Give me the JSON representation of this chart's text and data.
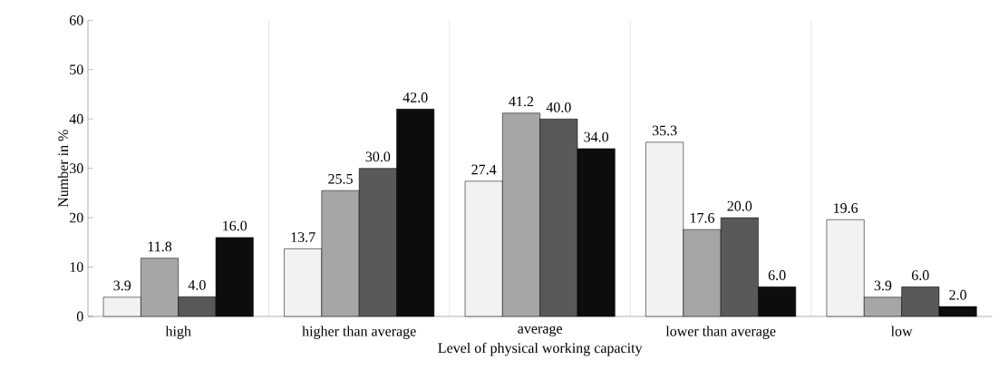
{
  "chart_data": {
    "type": "bar",
    "xlabel": "Level of physical working capacity",
    "ylabel": "Number in %",
    "categories": [
      "high",
      "higher than average",
      "average",
      "lower than average",
      "low"
    ],
    "series": [
      {
        "color": "#f2f2f2",
        "values": [
          3.9,
          13.7,
          27.4,
          35.3,
          19.6
        ],
        "value_labels": [
          "3.9",
          "13.7",
          "27.4",
          "35.3",
          "19.6"
        ]
      },
      {
        "color": "#a6a6a6",
        "values": [
          11.8,
          25.5,
          41.2,
          17.6,
          3.9
        ],
        "value_labels": [
          "11.8",
          "25.5",
          "41.2",
          "17.6",
          "3.9"
        ]
      },
      {
        "color": "#595959",
        "values": [
          4.0,
          30.0,
          40.0,
          20.0,
          6.0
        ],
        "value_labels": [
          "4.0",
          "30.0",
          "40.0",
          "20.0",
          "6.0"
        ]
      },
      {
        "color": "#0d0d0d",
        "values": [
          16.0,
          42.0,
          34.0,
          6.0,
          2.0
        ],
        "value_labels": [
          "16.0",
          "42.0",
          "34.0",
          "6.0",
          "2.0"
        ]
      }
    ],
    "ylim": [
      0,
      60
    ],
    "yticks": [
      0,
      10,
      20,
      30,
      40,
      50,
      60
    ],
    "grid": "x"
  }
}
